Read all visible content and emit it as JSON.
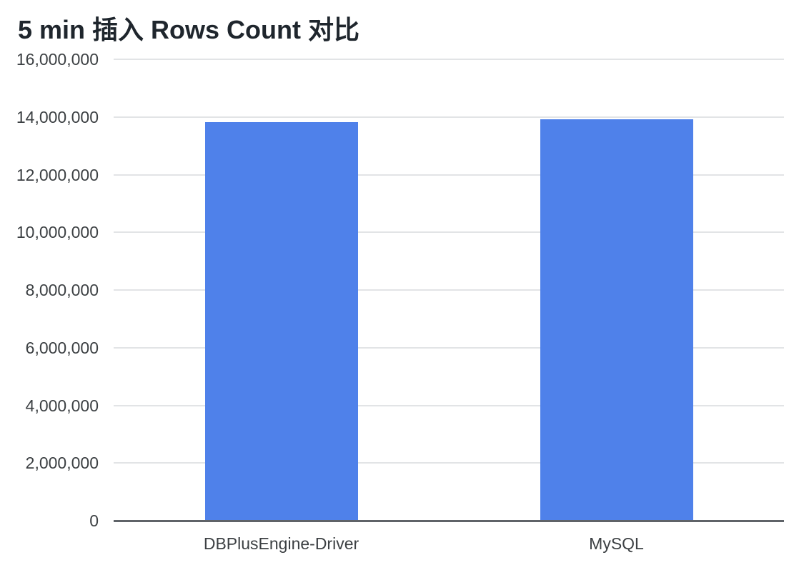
{
  "chart_data": {
    "type": "bar",
    "title": "5 min 插入 Rows Count 对比",
    "categories": [
      "DBPlusEngine-Driver",
      "MySQL"
    ],
    "values": [
      13830000,
      13930000
    ],
    "xlabel": "",
    "ylabel": "",
    "ylim": [
      0,
      16000000
    ],
    "ytick_interval": 2000000,
    "ytick_labels": [
      "0",
      "2,000,000",
      "4,000,000",
      "6,000,000",
      "8,000,000",
      "10,000,000",
      "12,000,000",
      "14,000,000",
      "16,000,000"
    ],
    "grid": true,
    "legend": "none",
    "colors": {
      "bar": "#4f81ea",
      "gridline": "#e2e4e6",
      "axis_line": "#5f6368",
      "title_text": "#1f262d",
      "label_text": "#3c4043",
      "background": "#ffffff"
    }
  }
}
